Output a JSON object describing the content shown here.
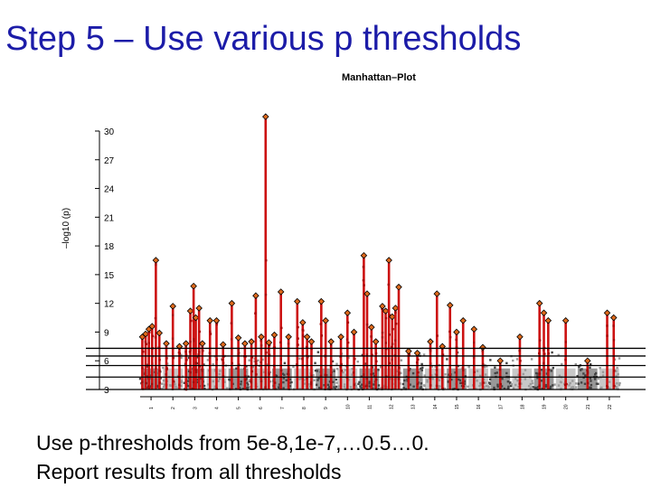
{
  "slide": {
    "title": "Step 5 – Use various p thresholds",
    "bullets": [
      "Use p-thresholds from 5e-8,1e-7,…0.5…0.",
      "Report results from all thresholds"
    ]
  },
  "chart_data": {
    "type": "scatter",
    "title": "Manhattan–Plot",
    "xlabel": "",
    "ylabel": "–log10 (p)",
    "yticks": [
      3,
      6,
      9,
      12,
      15,
      18,
      21,
      24,
      27,
      30
    ],
    "ylim": [
      3,
      30
    ],
    "xticks": [
      "1",
      "2",
      "3",
      "4",
      "5",
      "6",
      "7",
      "8",
      "9",
      "10",
      "11",
      "12",
      "13",
      "14",
      "15",
      "16",
      "17",
      "18",
      "19",
      "20",
      "21",
      "22"
    ],
    "threshold_lines": [
      3,
      4.3,
      5.5,
      6.5,
      7.3
    ],
    "colors": {
      "background_points": "#444444",
      "alt_background_points": "#9a9a9a",
      "signal_points": "#cc1111",
      "top_marker": "#e06a1c",
      "threshold_line": "#000000"
    },
    "series": [
      {
        "values": [
          {
            "chr": 1,
            "pos": 0.1,
            "y": 8.5
          },
          {
            "chr": 1,
            "pos": 0.25,
            "y": 8.8
          },
          {
            "chr": 1,
            "pos": 0.4,
            "y": 9.3
          },
          {
            "chr": 1,
            "pos": 0.55,
            "y": 9.6
          },
          {
            "chr": 1,
            "pos": 0.72,
            "y": 16.5
          },
          {
            "chr": 1,
            "pos": 0.88,
            "y": 8.9
          },
          {
            "chr": 2,
            "pos": 0.2,
            "y": 7.8
          },
          {
            "chr": 2,
            "pos": 0.5,
            "y": 11.7
          },
          {
            "chr": 2,
            "pos": 0.8,
            "y": 7.5
          },
          {
            "chr": 3,
            "pos": 0.1,
            "y": 7.8
          },
          {
            "chr": 3,
            "pos": 0.3,
            "y": 11.2
          },
          {
            "chr": 3,
            "pos": 0.45,
            "y": 13.8
          },
          {
            "chr": 3,
            "pos": 0.55,
            "y": 10.5
          },
          {
            "chr": 3,
            "pos": 0.7,
            "y": 11.5
          },
          {
            "chr": 3,
            "pos": 0.85,
            "y": 7.8
          },
          {
            "chr": 4,
            "pos": 0.2,
            "y": 10.2
          },
          {
            "chr": 4,
            "pos": 0.5,
            "y": 10.2
          },
          {
            "chr": 4,
            "pos": 0.8,
            "y": 7.7
          },
          {
            "chr": 5,
            "pos": 0.2,
            "y": 12.0
          },
          {
            "chr": 5,
            "pos": 0.5,
            "y": 8.4
          },
          {
            "chr": 5,
            "pos": 0.8,
            "y": 7.8
          },
          {
            "chr": 6,
            "pos": 0.1,
            "y": 8.0
          },
          {
            "chr": 6,
            "pos": 0.3,
            "y": 12.8
          },
          {
            "chr": 6,
            "pos": 0.55,
            "y": 8.5
          },
          {
            "chr": 6,
            "pos": 0.75,
            "y": 31.5
          },
          {
            "chr": 6,
            "pos": 0.9,
            "y": 7.9
          },
          {
            "chr": 7,
            "pos": 0.15,
            "y": 8.7
          },
          {
            "chr": 7,
            "pos": 0.45,
            "y": 13.2
          },
          {
            "chr": 7,
            "pos": 0.8,
            "y": 8.5
          },
          {
            "chr": 8,
            "pos": 0.2,
            "y": 12.2
          },
          {
            "chr": 8,
            "pos": 0.45,
            "y": 10.0
          },
          {
            "chr": 8,
            "pos": 0.65,
            "y": 8.5
          },
          {
            "chr": 8,
            "pos": 0.85,
            "y": 8.0
          },
          {
            "chr": 9,
            "pos": 0.3,
            "y": 12.2
          },
          {
            "chr": 9,
            "pos": 0.5,
            "y": 10.2
          },
          {
            "chr": 9,
            "pos": 0.75,
            "y": 8.0
          },
          {
            "chr": 10,
            "pos": 0.2,
            "y": 8.5
          },
          {
            "chr": 10,
            "pos": 0.5,
            "y": 11.0
          },
          {
            "chr": 10,
            "pos": 0.8,
            "y": 9.0
          },
          {
            "chr": 11,
            "pos": 0.25,
            "y": 17.0
          },
          {
            "chr": 11,
            "pos": 0.4,
            "y": 13.0
          },
          {
            "chr": 11,
            "pos": 0.6,
            "y": 9.5
          },
          {
            "chr": 11,
            "pos": 0.8,
            "y": 8.0
          },
          {
            "chr": 12,
            "pos": 0.1,
            "y": 11.7
          },
          {
            "chr": 12,
            "pos": 0.25,
            "y": 11.2
          },
          {
            "chr": 12,
            "pos": 0.4,
            "y": 16.5
          },
          {
            "chr": 12,
            "pos": 0.55,
            "y": 10.6
          },
          {
            "chr": 12,
            "pos": 0.7,
            "y": 11.5
          },
          {
            "chr": 12,
            "pos": 0.85,
            "y": 13.7
          },
          {
            "chr": 13,
            "pos": 0.3,
            "y": 7.0
          },
          {
            "chr": 13,
            "pos": 0.7,
            "y": 6.8
          },
          {
            "chr": 14,
            "pos": 0.3,
            "y": 8.0
          },
          {
            "chr": 14,
            "pos": 0.6,
            "y": 13.0
          },
          {
            "chr": 14,
            "pos": 0.85,
            "y": 7.5
          },
          {
            "chr": 15,
            "pos": 0.2,
            "y": 11.8
          },
          {
            "chr": 15,
            "pos": 0.5,
            "y": 9.0
          },
          {
            "chr": 15,
            "pos": 0.8,
            "y": 10.2
          },
          {
            "chr": 16,
            "pos": 0.3,
            "y": 9.3
          },
          {
            "chr": 16,
            "pos": 0.7,
            "y": 7.4
          },
          {
            "chr": 17,
            "pos": 0.5,
            "y": 6.0
          },
          {
            "chr": 18,
            "pos": 0.4,
            "y": 8.5
          },
          {
            "chr": 19,
            "pos": 0.3,
            "y": 12.0
          },
          {
            "chr": 19,
            "pos": 0.5,
            "y": 11.0
          },
          {
            "chr": 19,
            "pos": 0.7,
            "y": 10.2
          },
          {
            "chr": 20,
            "pos": 0.5,
            "y": 10.2
          },
          {
            "chr": 21,
            "pos": 0.5,
            "y": 6.0
          },
          {
            "chr": 22,
            "pos": 0.4,
            "y": 11.0
          },
          {
            "chr": 22,
            "pos": 0.7,
            "y": 10.5
          }
        ]
      }
    ]
  }
}
